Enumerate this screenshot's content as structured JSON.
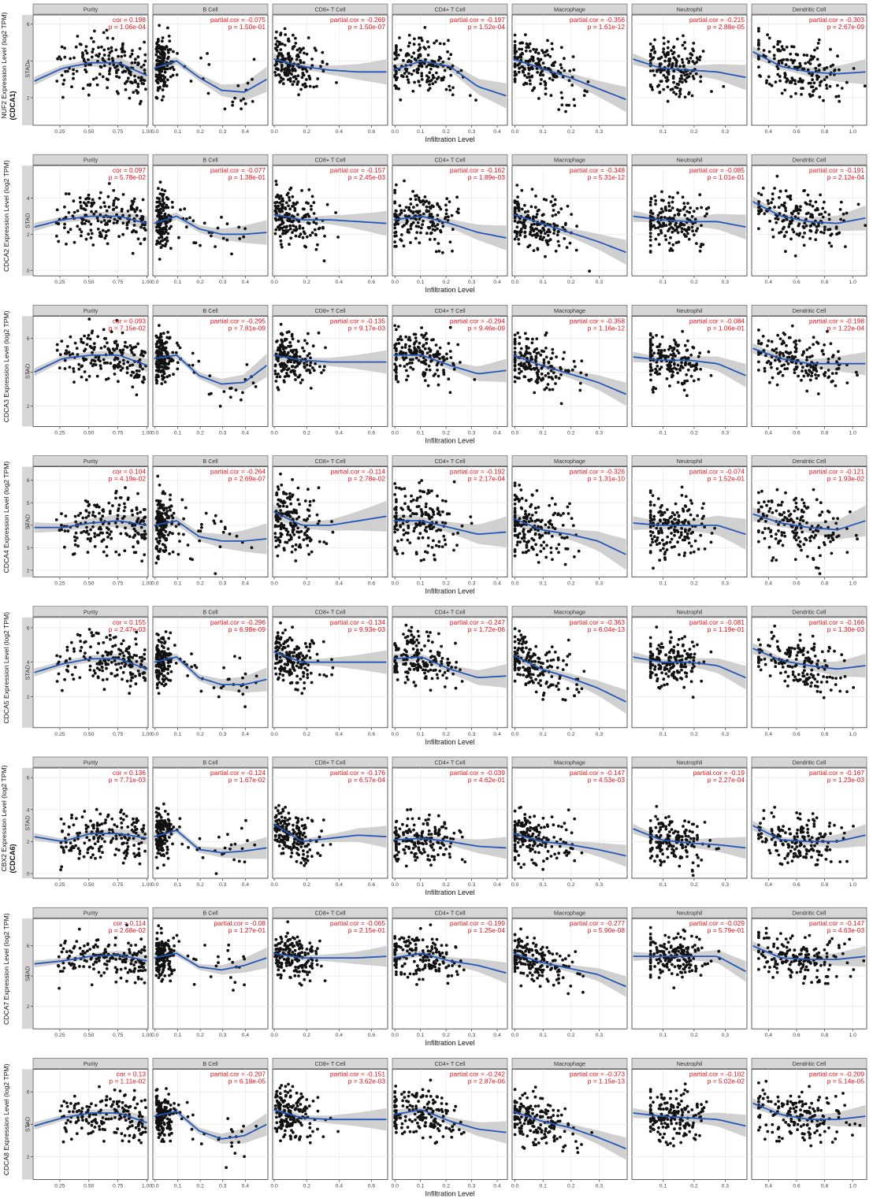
{
  "figure": {
    "tumor_label": "STAD",
    "xlabel": "Infiltration Level",
    "colors": {
      "point": "#111111",
      "fit": "#2457b8",
      "band": "#c8c8c8",
      "stat": "#e8141c",
      "strip": "#d6d6d6",
      "grid": "#ebebeb"
    }
  },
  "panel_titles": [
    "Purity",
    "B Cell",
    "CD8+ T Cell",
    "CD4+ T Cell",
    "Macrophage",
    "Neutrophil",
    "Dendritic Cell"
  ],
  "chart_data": {
    "type": "scatter",
    "panels": [
      {
        "ticks": [
          0.25,
          0.5,
          0.75,
          1.0
        ],
        "xlim": [
          0.02,
          1.01
        ]
      },
      {
        "ticks": [
          0.0,
          0.1,
          0.2,
          0.3,
          0.4
        ],
        "xlim": [
          -0.01,
          0.5
        ]
      },
      {
        "ticks": [
          0.0,
          0.2,
          0.4,
          0.6
        ],
        "xlim": [
          -0.01,
          0.7
        ]
      },
      {
        "ticks": [
          0.0,
          0.1,
          0.2,
          0.3,
          0.4
        ],
        "xlim": [
          -0.01,
          0.44
        ]
      },
      {
        "ticks": [
          0.0,
          0.1,
          0.2,
          0.3
        ],
        "xlim": [
          -0.01,
          0.4
        ]
      },
      {
        "ticks": [
          0.1,
          0.2,
          0.3
        ],
        "xlim": [
          0.0,
          0.37
        ]
      },
      {
        "ticks": [
          0.4,
          0.6,
          0.8,
          1.0
        ],
        "xlim": [
          0.28,
          1.1
        ]
      }
    ],
    "rows": [
      {
        "gene": "NUF2 Expression Level (log2 TPM)",
        "gene_note": "(CDCA1)",
        "yticks": [
          2,
          4,
          6
        ],
        "ylim": [
          0.5,
          6.5
        ],
        "stats": [
          [
            "cor = 0.198",
            "p = 1.06e-04"
          ],
          [
            "partial.cor = -0.075",
            "p = 1.50e-01"
          ],
          [
            "partial.cor = -0.269",
            "p = 1.50e-07"
          ],
          [
            "partial.cor = -0.197",
            "p = 1.52e-04"
          ],
          [
            "partial.cor = -0.356",
            "p = 1.61e-12"
          ],
          [
            "partial.cor = -0.215",
            "p = 2.88e-05"
          ],
          [
            "partial.cor = -0.303",
            "p = 2.67e-09"
          ]
        ],
        "fits": [
          [
            2.9,
            3.6,
            3.9,
            3.9,
            3.2
          ],
          [
            3.6,
            4.0,
            3.1,
            2.4,
            2.3,
            3.0
          ],
          [
            4.1,
            3.7,
            3.5,
            3.4,
            3.4
          ],
          [
            3.5,
            4.0,
            3.7,
            2.6,
            2.1
          ],
          [
            4.1,
            3.6,
            3.1,
            2.5,
            1.9
          ],
          [
            4.1,
            3.6,
            3.5,
            3.4,
            3.1
          ],
          [
            4.5,
            3.7,
            3.4,
            3.3,
            3.4
          ]
        ]
      },
      {
        "gene": "CDCA2 Expression Level (log2 TPM)",
        "gene_note": "",
        "yticks": [
          0,
          2,
          4
        ],
        "ylim": [
          -0.3,
          5.8
        ],
        "stats": [
          [
            "cor = 0.097",
            "p = 5.78e-02"
          ],
          [
            "partial.cor = -0.077",
            "p = 1.38e-01"
          ],
          [
            "partial.cor = -0.157",
            "p = 2.45e-03"
          ],
          [
            "partial.cor = -0.162",
            "p = 1.89e-03"
          ],
          [
            "partial.cor = -0.348",
            "p = 5.31e-12"
          ],
          [
            "partial.cor = -0.085",
            "p = 1.01e-01"
          ],
          [
            "partial.cor = -0.191",
            "p = 2.12e-04"
          ]
        ],
        "fits": [
          [
            2.4,
            2.8,
            3.0,
            3.0,
            2.6
          ],
          [
            2.6,
            3.0,
            2.3,
            2.0,
            2.0,
            2.1
          ],
          [
            3.1,
            2.8,
            2.8,
            2.7,
            2.6
          ],
          [
            2.8,
            3.0,
            2.6,
            2.1,
            1.8
          ],
          [
            3.1,
            2.6,
            2.1,
            1.6,
            1.0
          ],
          [
            3.0,
            2.8,
            2.7,
            2.7,
            2.4
          ],
          [
            3.8,
            3.0,
            2.7,
            2.6,
            2.9
          ]
        ]
      },
      {
        "gene": "CDCA3 Expression Level (log2 TPM)",
        "gene_note": "",
        "yticks": [
          2,
          4,
          6
        ],
        "ylim": [
          0.8,
          7.3
        ],
        "stats": [
          [
            "cor = 0.093",
            "p = 7.15e-02"
          ],
          [
            "partial.cor = -0.295",
            "p = 7.81e-09"
          ],
          [
            "partial.cor = -0.135",
            "p = 9.17e-03"
          ],
          [
            "partial.cor = -0.294",
            "p = 9.46e-09"
          ],
          [
            "partial.cor = -0.358",
            "p = 1.16e-12"
          ],
          [
            "partial.cor = -0.084",
            "p = 1.06e-01"
          ],
          [
            "partial.cor = -0.198",
            "p = 1.22e-04"
          ]
        ],
        "fits": [
          [
            4.0,
            4.8,
            5.0,
            5.0,
            4.4
          ],
          [
            4.8,
            5.0,
            3.8,
            3.3,
            3.4,
            4.4
          ],
          [
            5.0,
            4.7,
            4.6,
            4.6,
            4.6
          ],
          [
            5.0,
            5.0,
            4.4,
            3.9,
            4.1
          ],
          [
            5.0,
            4.4,
            3.9,
            3.4,
            2.7
          ],
          [
            4.9,
            4.7,
            4.7,
            4.5,
            3.8
          ],
          [
            5.4,
            4.8,
            4.5,
            4.5,
            4.5
          ]
        ]
      },
      {
        "gene": "CDCA4 Expression Level (log2 TPM)",
        "gene_note": "",
        "yticks": [
          2,
          3,
          4,
          5,
          6
        ],
        "ylim": [
          1.7,
          6.6
        ],
        "stats": [
          [
            "cor = 0.104",
            "p = 4.19e-02"
          ],
          [
            "partial.cor = -0.264",
            "p = 2.69e-07"
          ],
          [
            "partial.cor = -0.114",
            "p = 2.78e-02"
          ],
          [
            "partial.cor = -0.192",
            "p = 2.17e-04"
          ],
          [
            "partial.cor = -0.326",
            "p = 1.31e-10"
          ],
          [
            "partial.cor = -0.074",
            "p = 1.52e-01"
          ],
          [
            "partial.cor = -0.121",
            "p = 1.93e-02"
          ]
        ],
        "fits": [
          [
            3.9,
            3.9,
            4.1,
            4.2,
            4.0
          ],
          [
            4.0,
            4.2,
            3.5,
            3.3,
            3.3,
            3.4
          ],
          [
            4.6,
            4.0,
            4.0,
            4.2,
            4.4
          ],
          [
            4.2,
            4.2,
            3.9,
            3.6,
            3.7
          ],
          [
            4.3,
            3.8,
            3.6,
            3.3,
            2.7
          ],
          [
            4.1,
            4.0,
            4.0,
            4.0,
            3.6
          ],
          [
            4.5,
            4.1,
            3.9,
            3.8,
            4.2
          ]
        ]
      },
      {
        "gene": "CDCA5 Expression Level (log2 TPM)",
        "gene_note": "",
        "yticks": [
          2,
          4,
          6
        ],
        "ylim": [
          0.2,
          6.6
        ],
        "stats": [
          [
            "cor = 0.155",
            "p = 2.47e-03"
          ],
          [
            "partial.cor = -0.296",
            "p = 6.98e-09"
          ],
          [
            "partial.cor = -0.134",
            "p = 9.93e-03"
          ],
          [
            "partial.cor = -0.247",
            "p = 1.72e-06"
          ],
          [
            "partial.cor = -0.363",
            "p = 6.04e-13"
          ],
          [
            "partial.cor = -0.081",
            "p = 1.19e-01"
          ],
          [
            "partial.cor = -0.166",
            "p = 1.30e-03"
          ]
        ],
        "fits": [
          [
            3.4,
            3.9,
            4.2,
            4.2,
            3.6
          ],
          [
            4.0,
            4.3,
            3.1,
            2.7,
            2.7,
            3.0
          ],
          [
            4.6,
            4.0,
            4.0,
            4.0,
            4.0
          ],
          [
            4.2,
            4.3,
            3.6,
            3.1,
            3.2
          ],
          [
            4.4,
            3.6,
            3.1,
            2.5,
            1.7
          ],
          [
            4.3,
            4.0,
            4.0,
            3.8,
            3.1
          ],
          [
            4.8,
            4.1,
            3.8,
            3.6,
            3.8
          ]
        ]
      },
      {
        "gene": "CBX2 Expression Level (log2 TPM)",
        "gene_note": "(CDCA6)",
        "yticks": [
          0,
          2,
          4,
          6
        ],
        "ylim": [
          -0.3,
          6.6
        ],
        "stats": [
          [
            "cor = 0.136",
            "p = 7.71e-03"
          ],
          [
            "partial.cor = -0.124",
            "p = 1.67e-02"
          ],
          [
            "partial.cor = -0.176",
            "p = 6.57e-04"
          ],
          [
            "partial.cor = -0.039",
            "p = 4.62e-01"
          ],
          [
            "partial.cor = -0.147",
            "p = 4.53e-03"
          ],
          [
            "partial.cor = -0.19",
            "p = 2.27e-04"
          ],
          [
            "partial.cor = -0.167",
            "p = 1.23e-03"
          ]
        ],
        "fits": [
          [
            2.3,
            2.0,
            2.5,
            2.5,
            2.2
          ],
          [
            2.3,
            2.7,
            1.5,
            1.3,
            1.4,
            1.6
          ],
          [
            3.1,
            2.0,
            2.2,
            2.4,
            2.3
          ],
          [
            2.1,
            2.2,
            2.0,
            1.7,
            1.6
          ],
          [
            2.5,
            2.0,
            1.8,
            1.5,
            1.1
          ],
          [
            2.8,
            2.1,
            1.9,
            1.8,
            1.6
          ],
          [
            3.0,
            2.1,
            2.0,
            2.0,
            2.4
          ]
        ]
      },
      {
        "gene": "CDCA7 Expression Level (log2 TPM)",
        "gene_note": "",
        "yticks": [
          2,
          4,
          6
        ],
        "ylim": [
          0.5,
          7.8
        ],
        "stats": [
          [
            "cor = 0.114",
            "p = 2.68e-02"
          ],
          [
            "partial.cor = -0.08",
            "p = 1.27e-01"
          ],
          [
            "partial.cor = -0.065",
            "p = 2.15e-01"
          ],
          [
            "partial.cor = -0.199",
            "p = 1.25e-04"
          ],
          [
            "partial.cor = -0.277",
            "p = 5.90e-08"
          ],
          [
            "partial.cor = -0.029",
            "p = 5.79e-01"
          ],
          [
            "partial.cor = -0.147",
            "p = 4.63e-03"
          ]
        ],
        "fits": [
          [
            4.8,
            5.0,
            5.3,
            5.4,
            5.0
          ],
          [
            5.2,
            5.5,
            4.6,
            4.4,
            4.7,
            5.2
          ],
          [
            5.5,
            5.2,
            5.2,
            5.2,
            5.3
          ],
          [
            5.2,
            5.5,
            5.0,
            4.7,
            4.2
          ],
          [
            5.5,
            4.9,
            4.5,
            4.1,
            3.3
          ],
          [
            5.3,
            5.3,
            5.3,
            5.3,
            4.3
          ],
          [
            6.0,
            5.2,
            5.1,
            5.1,
            5.3
          ]
        ]
      },
      {
        "gene": "CDCA8 Expression Level (log2 TPM)",
        "gene_note": "",
        "yticks": [
          2,
          4,
          6
        ],
        "ylim": [
          0.6,
          7.4
        ],
        "stats": [
          [
            "cor = 0.13",
            "p = 1.11e-02"
          ],
          [
            "partial.cor = -0.207",
            "p = 6.18e-05"
          ],
          [
            "partial.cor = -0.151",
            "p = 3.62e-03"
          ],
          [
            "partial.cor = -0.242",
            "p = 2.87e-06"
          ],
          [
            "partial.cor = -0.373",
            "p = 1.15e-13"
          ],
          [
            "partial.cor = -0.102",
            "p = 5.02e-02"
          ],
          [
            "partial.cor = -0.209",
            "p = 5.14e-05"
          ]
        ],
        "fits": [
          [
            3.9,
            4.4,
            4.7,
            4.7,
            4.1
          ],
          [
            4.5,
            4.8,
            3.6,
            3.1,
            3.3,
            4.0
          ],
          [
            4.9,
            4.4,
            4.3,
            4.3,
            4.3
          ],
          [
            4.6,
            4.9,
            4.2,
            3.7,
            3.5
          ],
          [
            4.8,
            4.2,
            3.8,
            3.2,
            2.5
          ],
          [
            4.7,
            4.5,
            4.4,
            4.3,
            3.9
          ],
          [
            5.3,
            4.6,
            4.3,
            4.3,
            4.5
          ]
        ]
      }
    ]
  }
}
